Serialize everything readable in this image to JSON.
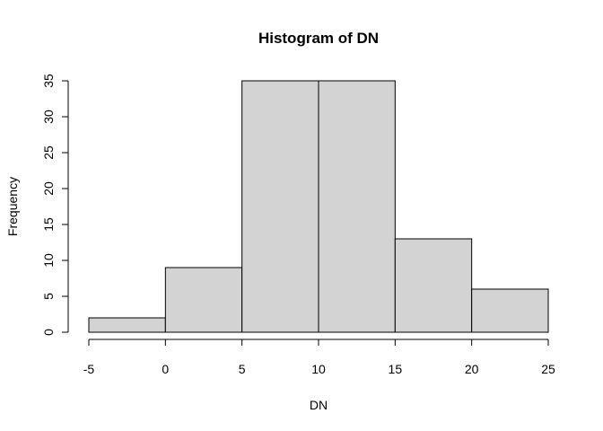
{
  "chart_data": {
    "type": "bar",
    "title": "Histogram of DN",
    "xlabel": "DN",
    "ylabel": "Frequency",
    "bins": [
      {
        "start": -5,
        "end": 0,
        "value": 2
      },
      {
        "start": 0,
        "end": 5,
        "value": 9
      },
      {
        "start": 5,
        "end": 10,
        "value": 35
      },
      {
        "start": 10,
        "end": 15,
        "value": 35
      },
      {
        "start": 15,
        "end": 20,
        "value": 13
      },
      {
        "start": 20,
        "end": 25,
        "value": 6
      }
    ],
    "xticks": [
      -5,
      0,
      5,
      10,
      15,
      20,
      25
    ],
    "yticks": [
      0,
      5,
      10,
      15,
      20,
      25,
      30,
      35
    ],
    "xlim": [
      -5,
      25
    ],
    "ylim": [
      0,
      35
    ],
    "grid": false,
    "bar_color": "#d3d3d3"
  }
}
